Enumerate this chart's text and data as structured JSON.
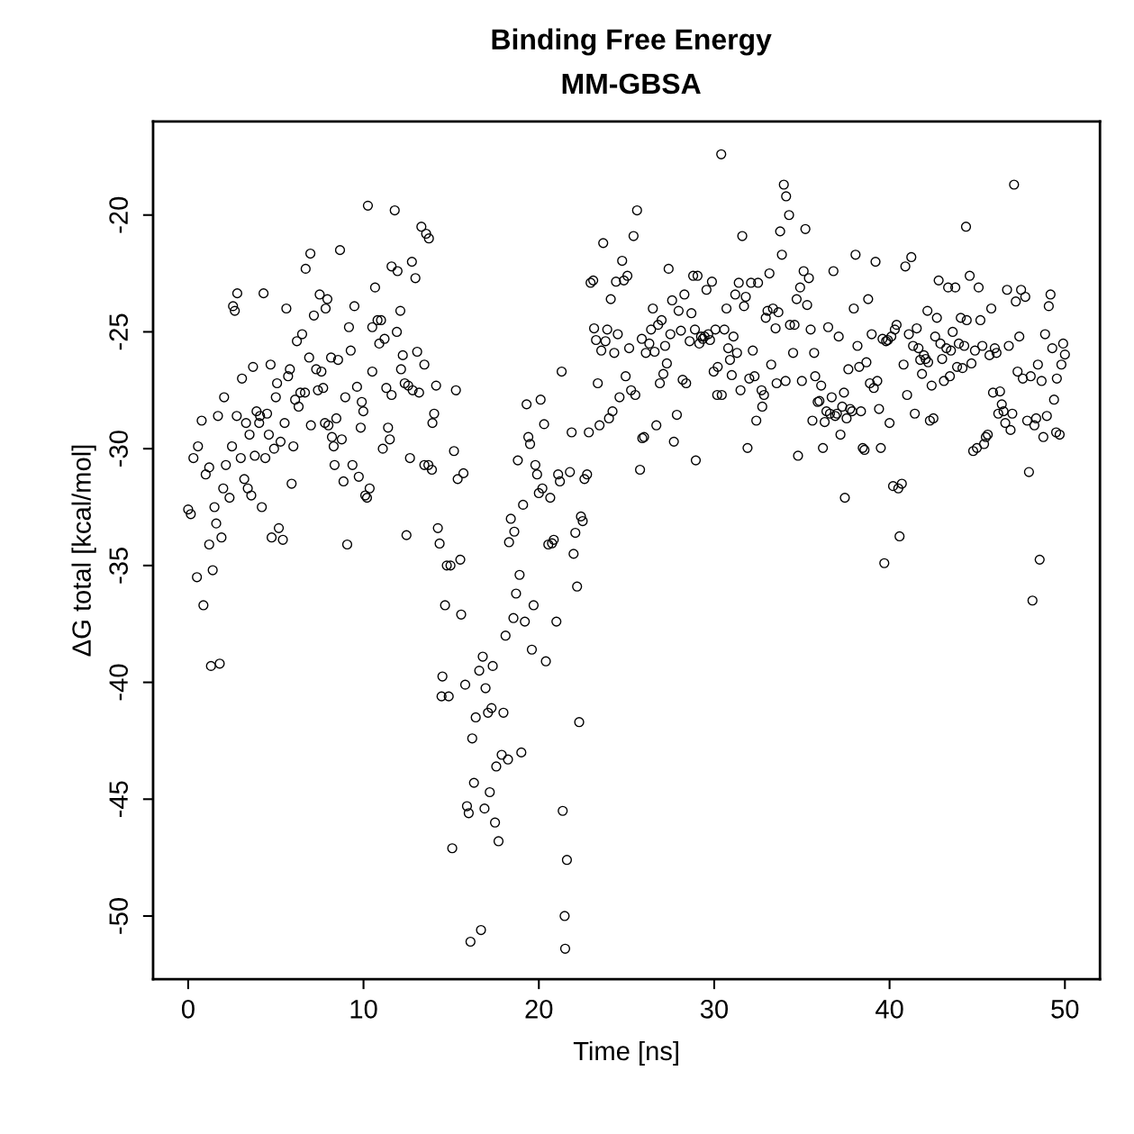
{
  "chart_data": {
    "type": "scatter",
    "title": "Binding Free Energy",
    "subtitle": "MM-GBSA",
    "xlabel": "Time [ns]",
    "ylabel": "ΔG total [kcal/mol]",
    "xlim": [
      -2,
      52
    ],
    "ylim": [
      -52.7,
      -16.0
    ],
    "xticks": [
      0,
      10,
      20,
      30,
      40,
      50
    ],
    "yticks": [
      -50,
      -45,
      -40,
      -35,
      -30,
      -25,
      -20
    ],
    "grid": false,
    "marker": "circle",
    "series": [
      {
        "color": "#000000",
        "x": [
          0,
          0.15,
          0.5,
          0.3,
          0.56,
          0.77,
          0.87,
          1.0,
          1.2,
          1.2,
          1.3,
          1.4,
          1.5,
          1.6,
          1.7,
          1.8,
          1.9,
          2.0,
          2.05,
          2.15,
          2.36,
          2.5,
          2.56,
          2.66,
          2.8,
          2.77,
          3.0,
          3.07,
          3.2,
          3.3,
          3.4,
          3.5,
          3.6,
          3.7,
          3.8,
          3.9,
          4.05,
          4.1,
          4.2,
          4.3,
          4.4,
          4.5,
          4.6,
          4.7,
          4.76,
          4.9,
          5.0,
          5.07,
          5.17,
          5.27,
          5.4,
          5.5,
          5.6,
          5.7,
          5.8,
          5.9,
          6.0,
          6.1,
          6.2,
          6.3,
          6.4,
          6.5,
          6.66,
          6.7,
          6.97,
          6.9,
          7.0,
          7.17,
          7.3,
          7.4,
          7.5,
          7.6,
          7.7,
          7.8,
          7.84,
          7.94,
          8.0,
          8.15,
          8.2,
          8.3,
          8.35,
          8.45,
          8.55,
          8.66,
          8.76,
          8.86,
          8.96,
          9.07,
          9.17,
          9.27,
          9.37,
          9.48,
          9.63,
          9.73,
          9.84,
          9.9,
          9.99,
          10.1,
          10.2,
          10.25,
          10.35,
          10.5,
          10.5,
          10.66,
          10.8,
          10.9,
          11.0,
          11.1,
          11.2,
          11.3,
          11.4,
          11.5,
          11.6,
          11.6,
          11.78,
          11.9,
          11.94,
          12.1,
          12.14,
          12.24,
          12.35,
          12.45,
          12.55,
          12.65,
          12.76,
          12.8,
          12.96,
          13.06,
          13.17,
          13.3,
          13.47,
          13.47,
          13.57,
          13.7,
          13.73,
          13.9,
          13.93,
          14.03,
          14.14,
          14.24,
          14.34,
          14.45,
          14.5,
          14.65,
          14.75,
          14.86,
          14.96,
          15.06,
          15.16,
          15.27,
          15.37,
          15.52,
          15.57,
          15.7,
          15.8,
          15.9,
          16.0,
          16.1,
          16.2,
          16.3,
          16.4,
          16.6,
          16.7,
          16.8,
          16.9,
          16.96,
          17.1,
          17.2,
          17.3,
          17.37,
          17.5,
          17.57,
          17.7,
          17.88,
          17.98,
          18.1,
          18.24,
          18.3,
          18.4,
          18.55,
          18.6,
          18.7,
          18.8,
          18.9,
          19.0,
          19.1,
          19.2,
          19.3,
          19.4,
          19.5,
          19.6,
          19.7,
          19.8,
          19.9,
          20.0,
          20.1,
          20.2,
          20.3,
          20.4,
          20.54,
          20.65,
          20.75,
          20.85,
          21.0,
          21.1,
          21.2,
          21.3,
          21.36,
          21.47,
          21.5,
          21.6,
          21.77,
          21.87,
          21.98,
          22.08,
          22.18,
          22.3,
          22.4,
          22.5,
          22.6,
          22.75,
          22.85,
          22.95,
          23.1,
          23.15,
          23.26,
          23.36,
          23.46,
          23.56,
          23.67,
          23.8,
          23.9,
          24.0,
          24.1,
          24.2,
          24.3,
          24.4,
          24.5,
          24.6,
          24.75,
          24.85,
          24.95,
          25.05,
          25.15,
          25.26,
          25.4,
          25.5,
          25.6,
          25.77,
          25.87,
          25.9,
          26.0,
          26.1,
          26.3,
          26.4,
          26.5,
          26.6,
          26.7,
          26.8,
          26.9,
          27.0,
          27.1,
          27.2,
          27.3,
          27.4,
          27.5,
          27.6,
          27.7,
          27.87,
          27.97,
          28.1,
          28.2,
          28.3,
          28.4,
          28.6,
          28.7,
          28.8,
          28.9,
          28.95,
          29.05,
          29.15,
          29.25,
          29.35,
          29.45,
          29.56,
          29.66,
          29.76,
          29.87,
          29.97,
          30.07,
          30.17,
          30.2,
          30.4,
          30.43,
          30.58,
          30.7,
          30.8,
          30.9,
          31.0,
          31.1,
          31.2,
          31.3,
          31.4,
          31.5,
          31.6,
          31.7,
          31.8,
          31.9,
          32.0,
          32.1,
          32.2,
          32.3,
          32.4,
          32.5,
          32.7,
          32.74,
          32.84,
          32.94,
          33.04,
          33.15,
          33.25,
          33.35,
          33.5,
          33.56,
          33.66,
          33.76,
          33.86,
          33.97,
          34.07,
          34.1,
          34.27,
          34.32,
          34.5,
          34.58,
          34.7,
          34.78,
          34.9,
          35.0,
          35.1,
          35.2,
          35.3,
          35.4,
          35.5,
          35.6,
          35.7,
          35.76,
          35.9,
          36.0,
          36.1,
          36.2,
          36.3,
          36.4,
          36.5,
          36.6,
          36.7,
          36.8,
          36.9,
          37.0,
          37.1,
          37.2,
          37.3,
          37.4,
          37.45,
          37.55,
          37.65,
          37.75,
          37.86,
          37.96,
          38.06,
          38.17,
          38.27,
          38.37,
          38.47,
          38.57,
          38.68,
          38.78,
          38.88,
          38.98,
          39.1,
          39.2,
          39.3,
          39.4,
          39.5,
          39.6,
          39.7,
          39.8,
          39.9,
          40.0,
          40.1,
          40.2,
          40.3,
          40.4,
          40.5,
          40.57,
          40.7,
          40.8,
          40.9,
          41.0,
          41.1,
          41.24,
          41.34,
          41.44,
          41.55,
          41.65,
          41.75,
          41.85,
          41.96,
          42.06,
          42.16,
          42.2,
          42.3,
          42.4,
          42.5,
          42.6,
          42.7,
          42.8,
          42.9,
          43.0,
          43.1,
          43.24,
          43.34,
          43.44,
          43.5,
          43.6,
          43.75,
          43.85,
          43.95,
          44.06,
          44.16,
          44.26,
          44.36,
          44.4,
          44.57,
          44.67,
          44.77,
          44.87,
          44.98,
          45.08,
          45.18,
          45.29,
          45.39,
          45.49,
          45.6,
          45.7,
          45.8,
          45.9,
          46.0,
          46.1,
          46.2,
          46.3,
          46.4,
          46.5,
          46.6,
          46.7,
          46.8,
          46.9,
          47.0,
          47.1,
          47.2,
          47.3,
          47.4,
          47.5,
          47.6,
          47.74,
          47.85,
          47.95,
          48.05,
          48.15,
          48.26,
          48.36,
          48.46,
          48.56,
          48.67,
          48.77,
          48.87,
          48.97,
          49.08,
          49.18,
          49.28,
          49.38,
          49.5,
          49.54,
          49.7,
          49.8,
          49.9,
          50.0
        ],
        "values": [
          -32.6,
          -32.8,
          -35.5,
          -30.4,
          -29.9,
          -28.8,
          -36.7,
          -31.1,
          -30.8,
          -34.1,
          -39.3,
          -35.2,
          -32.5,
          -33.2,
          -28.6,
          -39.2,
          -33.8,
          -31.7,
          -27.8,
          -30.7,
          -32.1,
          -29.9,
          -23.9,
          -24.1,
          -23.35,
          -28.6,
          -30.4,
          -27.0,
          -31.3,
          -28.9,
          -31.7,
          -29.4,
          -32.0,
          -26.5,
          -30.3,
          -28.4,
          -28.9,
          -28.6,
          -32.5,
          -23.35,
          -30.4,
          -28.5,
          -29.4,
          -26.4,
          -33.8,
          -30.0,
          -27.8,
          -27.2,
          -33.4,
          -29.7,
          -33.9,
          -28.9,
          -24.0,
          -26.9,
          -26.6,
          -31.5,
          -29.9,
          -27.9,
          -25.4,
          -28.2,
          -27.6,
          -25.1,
          -27.6,
          -22.3,
          -21.65,
          -26.1,
          -29.0,
          -24.3,
          -26.6,
          -27.5,
          -23.4,
          -26.7,
          -27.4,
          -28.9,
          -24.0,
          -23.6,
          -29.0,
          -26.1,
          -29.5,
          -29.9,
          -30.7,
          -28.7,
          -26.2,
          -21.5,
          -29.6,
          -31.4,
          -27.8,
          -34.1,
          -24.8,
          -25.8,
          -30.7,
          -23.9,
          -27.35,
          -31.2,
          -29.1,
          -28.0,
          -28.4,
          -32.0,
          -32.1,
          -19.6,
          -31.7,
          -26.7,
          -24.8,
          -23.1,
          -24.5,
          -25.5,
          -24.5,
          -30.0,
          -25.3,
          -27.4,
          -29.1,
          -29.6,
          -27.7,
          -22.2,
          -19.8,
          -25.0,
          -22.4,
          -24.1,
          -26.6,
          -26.0,
          -27.2,
          -33.7,
          -27.3,
          -30.4,
          -22.0,
          -27.5,
          -22.7,
          -25.85,
          -27.6,
          -20.5,
          -26.4,
          -30.7,
          -20.8,
          -30.7,
          -21.0,
          -30.9,
          -28.9,
          -28.5,
          -27.3,
          -33.4,
          -34.06,
          -40.6,
          -39.75,
          -36.7,
          -35.0,
          -40.6,
          -35.0,
          -47.1,
          -30.1,
          -27.5,
          -31.3,
          -34.75,
          -37.1,
          -31.05,
          -40.1,
          -45.3,
          -45.6,
          -51.1,
          -42.4,
          -44.3,
          -41.5,
          -39.5,
          -50.6,
          -38.9,
          -45.4,
          -40.25,
          -41.3,
          -44.7,
          -41.1,
          -39.3,
          -46.0,
          -43.6,
          -46.8,
          -43.1,
          -41.3,
          -38.0,
          -43.3,
          -34.0,
          -33.0,
          -37.25,
          -33.55,
          -36.2,
          -30.5,
          -35.4,
          -43.0,
          -32.4,
          -37.4,
          -28.1,
          -29.5,
          -29.8,
          -38.6,
          -36.7,
          -30.7,
          -31.1,
          -31.9,
          -27.9,
          -31.7,
          -28.95,
          -39.1,
          -34.1,
          -32.1,
          -34.05,
          -33.9,
          -37.4,
          -31.1,
          -31.4,
          -26.7,
          -45.5,
          -50.0,
          -51.4,
          -47.6,
          -31.0,
          -29.3,
          -34.5,
          -33.6,
          -35.9,
          -41.7,
          -32.9,
          -33.1,
          -31.3,
          -31.1,
          -29.3,
          -22.9,
          -22.8,
          -24.85,
          -25.35,
          -27.2,
          -29.0,
          -25.8,
          -21.2,
          -25.4,
          -24.9,
          -28.7,
          -23.6,
          -28.4,
          -25.9,
          -22.85,
          -25.1,
          -27.8,
          -21.96,
          -22.8,
          -26.9,
          -22.6,
          -25.7,
          -27.5,
          -20.9,
          -27.7,
          -19.8,
          -30.9,
          -25.3,
          -29.55,
          -29.5,
          -25.9,
          -25.5,
          -24.9,
          -24.0,
          -25.85,
          -29.0,
          -24.7,
          -27.2,
          -24.5,
          -26.8,
          -25.6,
          -26.35,
          -22.3,
          -25.1,
          -23.65,
          -29.7,
          -28.55,
          -24.1,
          -24.95,
          -27.05,
          -23.4,
          -27.2,
          -25.4,
          -24.2,
          -22.6,
          -24.9,
          -30.5,
          -22.6,
          -25.5,
          -25.2,
          -25.3,
          -25.2,
          -23.2,
          -25.1,
          -25.35,
          -22.85,
          -26.7,
          -24.9,
          -27.7,
          -26.5,
          -17.4,
          -27.7,
          -24.9,
          -24.0,
          -25.7,
          -26.2,
          -26.85,
          -25.2,
          -23.4,
          -25.9,
          -22.9,
          -27.5,
          -20.9,
          -23.9,
          -23.5,
          -29.97,
          -27.0,
          -22.9,
          -25.8,
          -26.9,
          -28.8,
          -22.9,
          -27.5,
          -28.2,
          -27.7,
          -24.4,
          -24.1,
          -22.5,
          -26.4,
          -24.0,
          -24.85,
          -27.2,
          -24.16,
          -20.7,
          -21.7,
          -18.7,
          -27.1,
          -19.2,
          -20.0,
          -24.7,
          -25.9,
          -24.7,
          -23.6,
          -30.3,
          -23.1,
          -27.1,
          -22.4,
          -20.6,
          -23.85,
          -22.7,
          -24.9,
          -28.8,
          -25.9,
          -26.9,
          -28.0,
          -27.96,
          -27.3,
          -29.97,
          -28.86,
          -28.4,
          -24.8,
          -28.5,
          -27.8,
          -22.4,
          -28.6,
          -28.5,
          -25.2,
          -29.4,
          -28.2,
          -27.6,
          -32.1,
          -28.7,
          -26.6,
          -28.3,
          -28.4,
          -24.0,
          -21.7,
          -25.6,
          -26.5,
          -28.4,
          -29.97,
          -30.05,
          -26.3,
          -23.6,
          -27.2,
          -25.1,
          -27.4,
          -22.0,
          -27.1,
          -28.3,
          -29.97,
          -25.3,
          -34.9,
          -25.4,
          -25.35,
          -28.9,
          -25.2,
          -31.6,
          -24.9,
          -24.7,
          -31.7,
          -33.75,
          -31.5,
          -26.4,
          -22.2,
          -27.7,
          -25.1,
          -21.8,
          -25.6,
          -28.5,
          -24.85,
          -25.7,
          -26.2,
          -26.8,
          -26.0,
          -26.16,
          -24.1,
          -26.3,
          -28.8,
          -27.3,
          -28.7,
          -25.2,
          -24.4,
          -22.8,
          -25.5,
          -26.16,
          -27.1,
          -25.7,
          -23.1,
          -26.9,
          -25.8,
          -25.0,
          -23.1,
          -26.5,
          -25.5,
          -24.4,
          -26.55,
          -25.6,
          -20.5,
          -24.5,
          -22.6,
          -26.35,
          -30.1,
          -25.8,
          -29.97,
          -23.1,
          -24.5,
          -25.6,
          -29.8,
          -29.5,
          -29.4,
          -26.0,
          -24.0,
          -27.6,
          -25.7,
          -25.9,
          -28.5,
          -27.55,
          -28.1,
          -28.4,
          -28.9,
          -23.2,
          -25.6,
          -29.2,
          -28.5,
          -18.7,
          -23.7,
          -26.7,
          -25.2,
          -23.2,
          -27.0,
          -23.5,
          -28.8,
          -31.0,
          -26.9,
          -36.5,
          -29.0,
          -28.7,
          -26.4,
          -34.75,
          -27.1,
          -29.5,
          -25.1,
          -28.6,
          -23.9,
          -23.4,
          -25.7,
          -27.9,
          -29.3,
          -27.0,
          -29.4,
          -26.4,
          -25.5,
          -25.97
        ]
      }
    ]
  }
}
